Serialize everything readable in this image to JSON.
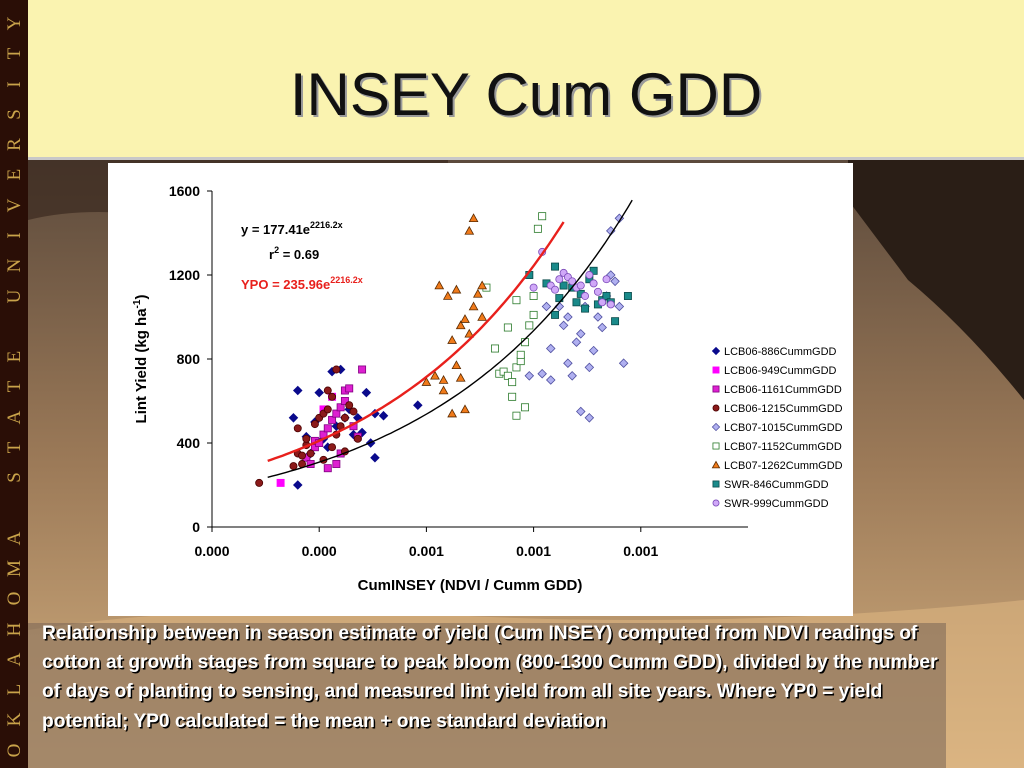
{
  "slide": {
    "title": "INSEY Cum GDD",
    "side_banner": "OKLAHOMA STATE UNIVERSITY",
    "caption": "Relationship between in season estimate of yield (Cum INSEY) computed from NDVI readings of cotton at growth stages from square to peak bloom (800-1300 Cumm GDD), divided by the number of days of planting to sensing, and measured lint yield from all site years.  Where YP0 = yield potential; YP0 calculated = the mean + one standard deviation",
    "colors": {
      "title_band": "#faf3b0",
      "banner": "#2a0e06",
      "banner_text": "#c9a34a"
    }
  },
  "chart_data": {
    "type": "scatter",
    "xlabel": "CumINSEY (NDVI / Cumm GDD)",
    "ylabel": "Lint Yield (kg ha-1)",
    "ylabel_parts": {
      "main": "Lint Yield (kg ha",
      "sup": "-1",
      "end": ")"
    },
    "xlim": [
      0.0,
      0.00125
    ],
    "ylim": [
      0,
      1600
    ],
    "yticks": [
      0,
      400,
      800,
      1200,
      1600
    ],
    "yticklabels": [
      "0",
      "400",
      "800",
      "1200",
      "1600"
    ],
    "xticks": [
      0.0,
      0.00025,
      0.0005,
      0.00075,
      0.001
    ],
    "xticklabels": [
      "0.000",
      "0.000",
      "0.001",
      "0.001",
      "0.001"
    ],
    "grid": false,
    "legend_position": "right",
    "annotations": {
      "fit_eq": {
        "main": "y = 177.41e",
        "sup": "2216.2x"
      },
      "fit_r2": {
        "main": "r",
        "sup": "2",
        "end": " = 0.69"
      },
      "ypo_eq": {
        "main": "YPO = 235.96e",
        "sup": "2216.2x"
      }
    },
    "curves": [
      {
        "name": "fit",
        "a": 177.41,
        "b": 2216.2,
        "x_range": [
          0.00013,
          0.00098
        ],
        "color": "#000000"
      },
      {
        "name": "YPO",
        "a": 235.96,
        "b": 2216.2,
        "x_range": [
          0.00013,
          0.00082
        ],
        "color": "#e8201c"
      }
    ],
    "series": [
      {
        "name": "LCB06-886CummGDD",
        "marker": "diamond",
        "fill": "#0a0a8c",
        "stroke": "#0a0a8c",
        "points": [
          [
            0.0002,
            650
          ],
          [
            0.00025,
            640
          ],
          [
            0.00028,
            740
          ],
          [
            0.0003,
            750
          ],
          [
            0.00032,
            560
          ],
          [
            0.00034,
            520
          ],
          [
            0.00036,
            640
          ],
          [
            0.00038,
            540
          ],
          [
            0.0004,
            530
          ],
          [
            0.00019,
            520
          ],
          [
            0.00024,
            500
          ],
          [
            0.00029,
            480
          ],
          [
            0.00033,
            440
          ],
          [
            0.00037,
            400
          ],
          [
            0.00038,
            330
          ],
          [
            0.00048,
            580
          ],
          [
            0.0002,
            200
          ],
          [
            0.00026,
            420
          ],
          [
            0.00031,
            520
          ],
          [
            0.00035,
            450
          ],
          [
            0.00027,
            380
          ],
          [
            0.00022,
            430
          ],
          [
            0.00023,
            350
          ]
        ]
      },
      {
        "name": "LCB06-949CummGDD",
        "marker": "square",
        "fill": "#ff00ff",
        "stroke": "#ff00ff",
        "points": [
          [
            0.00016,
            210
          ],
          [
            0.00026,
            560
          ],
          [
            0.00028,
            620
          ]
        ]
      },
      {
        "name": "LCB06-1161CummGDD",
        "marker": "square",
        "fill": "#dd20d0",
        "stroke": "#800080",
        "points": [
          [
            0.00022,
            330
          ],
          [
            0.00024,
            380
          ],
          [
            0.00024,
            410
          ],
          [
            0.00026,
            440
          ],
          [
            0.00027,
            470
          ],
          [
            0.00028,
            510
          ],
          [
            0.00029,
            540
          ],
          [
            0.0003,
            570
          ],
          [
            0.00031,
            600
          ],
          [
            0.00031,
            650
          ],
          [
            0.00032,
            660
          ],
          [
            0.00033,
            480
          ],
          [
            0.00034,
            430
          ],
          [
            0.00035,
            750
          ],
          [
            0.00029,
            300
          ],
          [
            0.0003,
            350
          ],
          [
            0.00025,
            400
          ],
          [
            0.00027,
            280
          ],
          [
            0.00023,
            300
          ]
        ]
      },
      {
        "name": "LCB06-1215CummGDD",
        "marker": "circle",
        "fill": "#8b1a1a",
        "stroke": "#4a0000",
        "points": [
          [
            0.00011,
            210
          ],
          [
            0.00019,
            290
          ],
          [
            0.0002,
            350
          ],
          [
            0.0002,
            470
          ],
          [
            0.00021,
            300
          ],
          [
            0.00022,
            390
          ],
          [
            0.00022,
            420
          ],
          [
            0.00023,
            350
          ],
          [
            0.00024,
            490
          ],
          [
            0.00025,
            520
          ],
          [
            0.00026,
            540
          ],
          [
            0.00027,
            560
          ],
          [
            0.00027,
            650
          ],
          [
            0.00028,
            620
          ],
          [
            0.00028,
            380
          ],
          [
            0.00029,
            750
          ],
          [
            0.0003,
            480
          ],
          [
            0.00031,
            520
          ],
          [
            0.00032,
            580
          ],
          [
            0.00033,
            550
          ],
          [
            0.00034,
            420
          ],
          [
            0.00026,
            320
          ],
          [
            0.00021,
            340
          ],
          [
            0.00029,
            440
          ],
          [
            0.00031,
            360
          ]
        ]
      },
      {
        "name": "LCB07-1015CummGDD",
        "marker": "diamond",
        "fill": "#b0b0f0",
        "stroke": "#5050a0",
        "points": [
          [
            0.00074,
            720
          ],
          [
            0.00077,
            730
          ],
          [
            0.00079,
            850
          ],
          [
            0.00079,
            700
          ],
          [
            0.00081,
            1050
          ],
          [
            0.00082,
            960
          ],
          [
            0.00083,
            780
          ],
          [
            0.00084,
            720
          ],
          [
            0.00085,
            880
          ],
          [
            0.00086,
            920
          ],
          [
            0.00087,
            1050
          ],
          [
            0.00088,
            760
          ],
          [
            0.00089,
            840
          ],
          [
            0.0009,
            1000
          ],
          [
            0.00091,
            950
          ],
          [
            0.00092,
            1100
          ],
          [
            0.00093,
            1200
          ],
          [
            0.00094,
            1170
          ],
          [
            0.00095,
            1050
          ],
          [
            0.00096,
            780
          ],
          [
            0.00086,
            550
          ],
          [
            0.00088,
            520
          ],
          [
            0.00093,
            1410
          ],
          [
            0.00095,
            1470
          ],
          [
            0.00078,
            1050
          ],
          [
            0.00083,
            1000
          ]
        ]
      },
      {
        "name": "LCB07-1152CummGDD",
        "marker": "square",
        "fill": "#ffffff",
        "stroke": "#2a7a2a",
        "points": [
          [
            0.00067,
            730
          ],
          [
            0.00068,
            740
          ],
          [
            0.00069,
            720
          ],
          [
            0.0007,
            690
          ],
          [
            0.00071,
            760
          ],
          [
            0.00072,
            790
          ],
          [
            0.00073,
            880
          ],
          [
            0.00074,
            960
          ],
          [
            0.00075,
            1100
          ],
          [
            0.00076,
            1420
          ],
          [
            0.00077,
            1480
          ],
          [
            0.00071,
            530
          ],
          [
            0.00073,
            570
          ],
          [
            0.00069,
            950
          ],
          [
            0.00071,
            1080
          ],
          [
            0.00066,
            850
          ],
          [
            0.00064,
            1140
          ],
          [
            0.0007,
            620
          ],
          [
            0.00072,
            820
          ],
          [
            0.00075,
            1010
          ]
        ]
      },
      {
        "name": "LCB07-1262CummGDD",
        "marker": "triangle",
        "fill": "#f07a1a",
        "stroke": "#5a2a00",
        "points": [
          [
            0.0005,
            690
          ],
          [
            0.00052,
            720
          ],
          [
            0.00053,
            1150
          ],
          [
            0.00054,
            700
          ],
          [
            0.00055,
            1100
          ],
          [
            0.00056,
            890
          ],
          [
            0.00057,
            770
          ],
          [
            0.00058,
            960
          ],
          [
            0.00059,
            560
          ],
          [
            0.0006,
            920
          ],
          [
            0.00061,
            1050
          ],
          [
            0.00062,
            1110
          ],
          [
            0.00063,
            1150
          ],
          [
            0.0006,
            1410
          ],
          [
            0.00061,
            1470
          ],
          [
            0.00057,
            1130
          ],
          [
            0.00054,
            650
          ],
          [
            0.00059,
            990
          ],
          [
            0.00058,
            710
          ],
          [
            0.00063,
            1000
          ],
          [
            0.00056,
            540
          ]
        ]
      },
      {
        "name": "SWR-846CummGDD",
        "marker": "square",
        "fill": "#1a8a8a",
        "stroke": "#0a4a4a",
        "points": [
          [
            0.00074,
            1200
          ],
          [
            0.00078,
            1160
          ],
          [
            0.0008,
            1240
          ],
          [
            0.00081,
            1090
          ],
          [
            0.00082,
            1150
          ],
          [
            0.00084,
            1140
          ],
          [
            0.00085,
            1070
          ],
          [
            0.00086,
            1110
          ],
          [
            0.00087,
            1040
          ],
          [
            0.00088,
            1180
          ],
          [
            0.00089,
            1220
          ],
          [
            0.0009,
            1060
          ],
          [
            0.00091,
            1080
          ],
          [
            0.00092,
            1100
          ],
          [
            0.00093,
            1070
          ],
          [
            0.00094,
            980
          ],
          [
            0.00097,
            1100
          ],
          [
            0.0008,
            1010
          ]
        ]
      },
      {
        "name": "SWR-999CummGDD",
        "marker": "circle",
        "fill": "#d0a8f8",
        "stroke": "#7a4ab8",
        "points": [
          [
            0.00075,
            1140
          ],
          [
            0.00077,
            1310
          ],
          [
            0.00079,
            1150
          ],
          [
            0.0008,
            1130
          ],
          [
            0.00081,
            1180
          ],
          [
            0.00082,
            1210
          ],
          [
            0.00083,
            1190
          ],
          [
            0.00084,
            1170
          ],
          [
            0.00085,
            1140
          ],
          [
            0.00086,
            1150
          ],
          [
            0.00087,
            1100
          ],
          [
            0.00088,
            1200
          ],
          [
            0.00089,
            1160
          ],
          [
            0.0009,
            1120
          ],
          [
            0.00091,
            1070
          ],
          [
            0.00092,
            1180
          ],
          [
            0.00093,
            1060
          ]
        ]
      }
    ]
  }
}
